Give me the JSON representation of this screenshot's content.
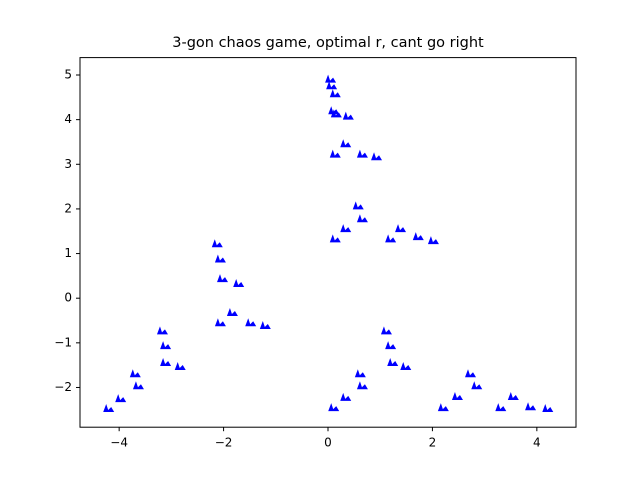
{
  "chart_data": {
    "type": "scatter",
    "title": "3-gon chaos game, optimal r, cant go right",
    "color": "#0000ff",
    "x": [
      0.04,
      0.06,
      0.13,
      0.1,
      0.15,
      0.38,
      0.13,
      0.33,
      0.65,
      0.92,
      0.57,
      0.65,
      0.13,
      0.33,
      1.19,
      1.38,
      1.72,
      2.01,
      -2.13,
      -2.07,
      -2.03,
      -1.72,
      -2.07,
      -1.84,
      -1.49,
      -1.21,
      -3.18,
      -3.12,
      -3.12,
      -2.84,
      -3.7,
      -3.64,
      -4.21,
      -3.98,
      1.11,
      1.19,
      1.23,
      1.48,
      0.61,
      0.65,
      0.1,
      0.33,
      2.2,
      2.47,
      2.72,
      2.84,
      3.3,
      3.54,
      3.87,
      4.2
    ],
    "y": [
      4.92,
      4.77,
      4.59,
      4.21,
      4.14,
      4.09,
      3.24,
      3.47,
      3.24,
      3.18,
      2.08,
      1.79,
      1.34,
      1.57,
      1.34,
      1.57,
      1.39,
      1.3,
      1.23,
      0.89,
      0.45,
      0.34,
      -0.54,
      -0.31,
      -0.54,
      -0.6,
      -0.72,
      -1.05,
      -1.43,
      -1.52,
      -1.68,
      -1.95,
      -2.46,
      -2.24,
      -0.72,
      -1.05,
      -1.43,
      -1.52,
      -1.68,
      -1.95,
      -2.44,
      -2.21,
      -2.44,
      -2.19,
      -1.68,
      -1.95,
      -2.44,
      -2.19,
      -2.42,
      -2.46
    ],
    "xlim": [
      -4.75,
      4.75
    ],
    "ylim": [
      -2.89,
      5.39
    ],
    "xticks": [
      {
        "value": -4,
        "label": "−4"
      },
      {
        "value": -2,
        "label": "−2"
      },
      0,
      2,
      4
    ],
    "yticks": [
      {
        "value": -2,
        "label": "−2"
      },
      {
        "value": -1,
        "label": "−1"
      },
      0,
      1,
      2,
      3,
      4,
      5
    ],
    "grid": false
  }
}
